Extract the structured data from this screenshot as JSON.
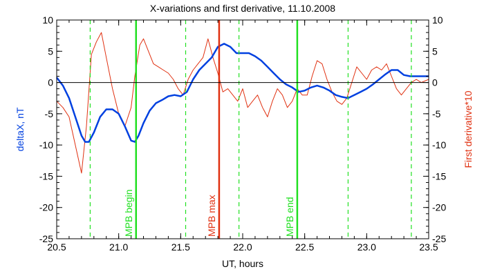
{
  "chart_data": {
    "type": "line",
    "title": "X-variations and first derivative, 11.10.2008",
    "xlabel": "UT, hours",
    "ylabel_left": "deltaX, nT",
    "ylabel_right": "First derivative*10",
    "xlim": [
      20.5,
      23.5
    ],
    "ylim": [
      -25,
      10
    ],
    "x_ticks": [
      20.5,
      21.0,
      21.5,
      22.0,
      22.5,
      23.0,
      23.5
    ],
    "x_tick_labels": [
      "20.5",
      "21.0",
      "21.5",
      "22.0",
      "22.5",
      "23.0",
      "23.5"
    ],
    "y_ticks": [
      -25,
      -20,
      -15,
      -10,
      -5,
      0,
      5,
      10
    ],
    "y_tick_labels": [
      "-25",
      "-20",
      "-15",
      "-10",
      "-5",
      "0",
      "5",
      "10"
    ],
    "zero_line": 0,
    "grid": false,
    "series": [
      {
        "name": "deltaX, nT",
        "color": "#0040e0",
        "x": [
          20.5,
          20.55,
          20.6,
          20.65,
          20.7,
          20.73,
          20.76,
          20.8,
          20.85,
          20.9,
          20.95,
          21.0,
          21.05,
          21.1,
          21.13,
          21.16,
          21.2,
          21.25,
          21.3,
          21.35,
          21.4,
          21.45,
          21.5,
          21.55,
          21.6,
          21.65,
          21.7,
          21.75,
          21.8,
          21.85,
          21.9,
          21.95,
          22.0,
          22.05,
          22.1,
          22.15,
          22.2,
          22.25,
          22.3,
          22.35,
          22.4,
          22.45,
          22.5,
          22.55,
          22.6,
          22.65,
          22.7,
          22.75,
          22.8,
          22.85,
          22.9,
          22.95,
          23.0,
          23.05,
          23.1,
          23.15,
          23.2,
          23.25,
          23.3,
          23.35,
          23.4,
          23.45,
          23.5
        ],
        "y": [
          0.8,
          -0.5,
          -2.5,
          -5.5,
          -8.5,
          -9.5,
          -9.5,
          -8.0,
          -5.5,
          -4.3,
          -4.3,
          -5.0,
          -7.0,
          -9.3,
          -9.5,
          -8.5,
          -6.5,
          -4.5,
          -3.3,
          -2.8,
          -2.2,
          -2.0,
          -2.2,
          -1.5,
          0.5,
          2.0,
          3.0,
          4.0,
          5.7,
          6.2,
          5.7,
          4.7,
          4.7,
          4.7,
          4.2,
          3.5,
          2.5,
          1.5,
          0.5,
          -0.3,
          -0.8,
          -1.5,
          -1.3,
          -0.8,
          -0.5,
          -0.8,
          -1.3,
          -2.0,
          -2.3,
          -2.5,
          -2.0,
          -1.5,
          -1.0,
          -0.3,
          0.5,
          1.3,
          2.0,
          2.0,
          1.2,
          1.0,
          1.0,
          1.0,
          1.0
        ]
      },
      {
        "name": "First derivative*10",
        "color": "#e03010",
        "x": [
          20.5,
          20.55,
          20.6,
          20.65,
          20.7,
          20.74,
          20.78,
          20.82,
          20.86,
          20.9,
          20.95,
          21.0,
          21.05,
          21.1,
          21.13,
          21.17,
          21.2,
          21.24,
          21.28,
          21.32,
          21.36,
          21.4,
          21.44,
          21.48,
          21.52,
          21.56,
          21.6,
          21.64,
          21.68,
          21.72,
          21.76,
          21.8,
          21.84,
          21.88,
          21.92,
          21.96,
          22.0,
          22.04,
          22.08,
          22.12,
          22.16,
          22.2,
          22.24,
          22.28,
          22.32,
          22.36,
          22.4,
          22.44,
          22.48,
          22.52,
          22.56,
          22.6,
          22.64,
          22.68,
          22.72,
          22.76,
          22.8,
          22.84,
          22.88,
          22.92,
          22.96,
          23.0,
          23.04,
          23.08,
          23.12,
          23.16,
          23.2,
          23.24,
          23.28,
          23.32,
          23.36,
          23.4,
          23.44,
          23.5
        ],
        "y": [
          -3.0,
          -4.0,
          -5.5,
          -10.0,
          -14.5,
          -7.0,
          4.5,
          6.5,
          8.0,
          4.0,
          -1.0,
          -5.0,
          -7.0,
          -4.0,
          1.0,
          6.0,
          7.0,
          5.0,
          3.0,
          2.5,
          2.0,
          1.5,
          0.5,
          -1.0,
          -2.0,
          0.5,
          2.0,
          3.0,
          4.0,
          7.0,
          4.0,
          1.5,
          -1.5,
          -1.0,
          -2.0,
          -3.0,
          -1.0,
          -4.0,
          -3.0,
          -2.0,
          -4.0,
          -5.5,
          -3.0,
          -1.0,
          -2.0,
          -4.0,
          -3.0,
          -1.0,
          -2.0,
          -2.0,
          1.0,
          3.5,
          3.0,
          0.5,
          -1.5,
          -3.0,
          -3.5,
          -2.5,
          0.0,
          2.5,
          1.5,
          0.5,
          2.0,
          2.5,
          2.0,
          3.0,
          1.0,
          -1.0,
          -2.0,
          -1.0,
          0.0,
          0.5,
          0.0,
          0.5
        ]
      }
    ],
    "vlines": [
      {
        "x": 20.77,
        "color": "#20e020",
        "style": "dashed",
        "label": ""
      },
      {
        "x": 21.14,
        "color": "#20e020",
        "style": "solid",
        "label": "MPB begin"
      },
      {
        "x": 21.54,
        "color": "#20e020",
        "style": "dashed",
        "label": ""
      },
      {
        "x": 21.81,
        "color": "#e03010",
        "style": "solid",
        "label": "MPB max"
      },
      {
        "x": 21.97,
        "color": "#20e020",
        "style": "dashed",
        "label": ""
      },
      {
        "x": 22.44,
        "color": "#20e020",
        "style": "solid",
        "label": "MPB end"
      },
      {
        "x": 22.85,
        "color": "#20e020",
        "style": "dashed",
        "label": ""
      },
      {
        "x": 23.36,
        "color": "#20e020",
        "style": "dashed",
        "label": ""
      }
    ],
    "colors": {
      "left_axis_title": "#0040e0",
      "right_axis_title": "#e03010",
      "green_marker": "#20e020",
      "red_marker": "#e03010"
    }
  }
}
